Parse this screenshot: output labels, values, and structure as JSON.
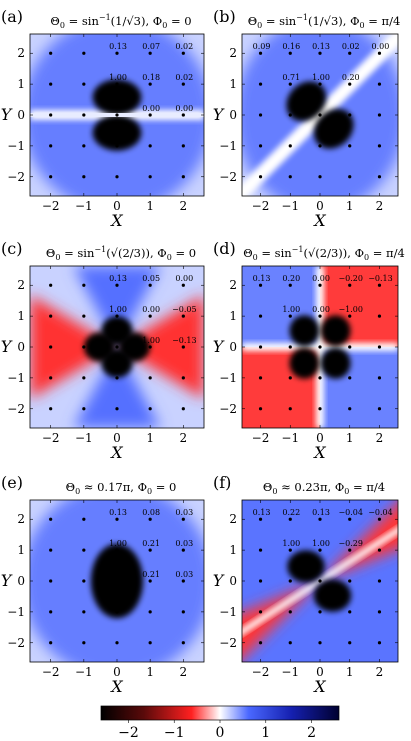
{
  "panels": [
    {
      "letter": "(a)",
      "title_pre": "Θ",
      "title_sub": "0",
      "title_mid": " = sin",
      "title_sup": "−1",
      "title_arg": "(1/√3), ",
      "title_phi": "Φ",
      "title_phi_sub": "0",
      "title_phi_val": " = 0",
      "pattern": "dipole-y",
      "labels": [
        {
          "x": 0,
          "y": 2,
          "text": "0.13"
        },
        {
          "x": 1,
          "y": 2,
          "text": "0.07"
        },
        {
          "x": 2,
          "y": 2,
          "text": "0.02"
        },
        {
          "x": 0,
          "y": 1,
          "text": "1.00"
        },
        {
          "x": 1,
          "y": 1,
          "text": "0.18"
        },
        {
          "x": 2,
          "y": 1,
          "text": "0.02"
        },
        {
          "x": 1,
          "y": 0,
          "text": "0.00"
        },
        {
          "x": 2,
          "y": 0,
          "text": "0.00"
        }
      ]
    },
    {
      "letter": "(b)",
      "title_pre": "Θ",
      "title_sub": "0",
      "title_mid": " = sin",
      "title_sup": "−1",
      "title_arg": "(1/√3), ",
      "title_phi": "Φ",
      "title_phi_sub": "0",
      "title_phi_val": " = π/4",
      "pattern": "dipole-rot",
      "labels": [
        {
          "x": -2,
          "y": 2,
          "text": "0.09"
        },
        {
          "x": -1,
          "y": 2,
          "text": "0.16"
        },
        {
          "x": 0,
          "y": 2,
          "text": "0.13"
        },
        {
          "x": 1,
          "y": 2,
          "text": "0.02"
        },
        {
          "x": 2,
          "y": 2,
          "text": "0.00"
        },
        {
          "x": -1,
          "y": 1,
          "text": "0.71"
        },
        {
          "x": 0,
          "y": 1,
          "text": "1.00"
        },
        {
          "x": 1,
          "y": 1,
          "text": "0.20"
        }
      ]
    },
    {
      "letter": "(c)",
      "title_pre": "Θ",
      "title_sub": "0",
      "title_mid": " = sin",
      "title_sup": "−1",
      "title_arg": "(√(2/3)), ",
      "title_phi": "Φ",
      "title_phi_sub": "0",
      "title_phi_val": " = 0",
      "pattern": "quad-cross",
      "labels": [
        {
          "x": 0,
          "y": 2,
          "text": "0.13"
        },
        {
          "x": 1,
          "y": 2,
          "text": "0.05"
        },
        {
          "x": 2,
          "y": 2,
          "text": "0.00"
        },
        {
          "x": 0,
          "y": 1,
          "text": "1.00"
        },
        {
          "x": 1,
          "y": 1,
          "text": "0.00"
        },
        {
          "x": 2,
          "y": 1,
          "text": "−0.05"
        },
        {
          "x": 1,
          "y": 0,
          "text": "1.00"
        },
        {
          "x": 2,
          "y": 0,
          "text": "−0.13"
        }
      ]
    },
    {
      "letter": "(d)",
      "title_pre": "Θ",
      "title_sub": "0",
      "title_mid": " = sin",
      "title_sup": "−1",
      "title_arg": "(√(2/3)), ",
      "title_phi": "Φ",
      "title_phi_sub": "0",
      "title_phi_val": " = π/4",
      "pattern": "quad-xy",
      "labels": [
        {
          "x": -2,
          "y": 2,
          "text": "0.13"
        },
        {
          "x": -1,
          "y": 2,
          "text": "0.20"
        },
        {
          "x": 0,
          "y": 2,
          "text": "0.00"
        },
        {
          "x": 1,
          "y": 2,
          "text": "−0.20"
        },
        {
          "x": 2,
          "y": 2,
          "text": "−0.13"
        },
        {
          "x": -1,
          "y": 1,
          "text": "1.00"
        },
        {
          "x": 0,
          "y": 1,
          "text": "0.00"
        },
        {
          "x": 1,
          "y": 1,
          "text": "−1.00"
        }
      ]
    },
    {
      "letter": "(e)",
      "title_pre": "Θ",
      "title_sub": "0",
      "title_mid": " ≈ 0.17π, ",
      "title_sup": "",
      "title_arg": "",
      "title_phi": "Φ",
      "title_phi_sub": "0",
      "title_phi_val": " = 0",
      "pattern": "blob",
      "labels": [
        {
          "x": 0,
          "y": 2,
          "text": "0.13"
        },
        {
          "x": 1,
          "y": 2,
          "text": "0.08"
        },
        {
          "x": 2,
          "y": 2,
          "text": "0.03"
        },
        {
          "x": 0,
          "y": 1,
          "text": "1.00"
        },
        {
          "x": 1,
          "y": 1,
          "text": "0.21"
        },
        {
          "x": 2,
          "y": 1,
          "text": "0.03"
        },
        {
          "x": 1,
          "y": 0,
          "text": "0.21"
        },
        {
          "x": 2,
          "y": 0,
          "text": "0.03"
        }
      ]
    },
    {
      "letter": "(f)",
      "title_pre": "Θ",
      "title_sub": "0",
      "title_mid": " ≈ 0.23π, ",
      "title_sup": "",
      "title_arg": "",
      "title_phi": "Φ",
      "title_phi_sub": "0",
      "title_phi_val": " = π/4",
      "pattern": "mixed",
      "labels": [
        {
          "x": -2,
          "y": 2,
          "text": "0.13"
        },
        {
          "x": -1,
          "y": 2,
          "text": "0.22"
        },
        {
          "x": 0,
          "y": 2,
          "text": "0.13"
        },
        {
          "x": 1,
          "y": 2,
          "text": "−0.04"
        },
        {
          "x": 2,
          "y": 2,
          "text": "−0.04"
        },
        {
          "x": -1,
          "y": 1,
          "text": "1.00"
        },
        {
          "x": 0,
          "y": 1,
          "text": "1.00"
        },
        {
          "x": 1,
          "y": 1,
          "text": "−0.29"
        }
      ]
    }
  ],
  "axis": {
    "x_label": "X",
    "y_label": "Y",
    "ticks": [
      "−2",
      "−1",
      "0",
      "1",
      "2"
    ],
    "tick_values": [
      -2,
      -1,
      0,
      1,
      2
    ]
  },
  "colorbar": {
    "tick_labels": [
      "−2",
      "−1",
      "0",
      "1",
      "2"
    ],
    "tick_values": [
      -2,
      -1,
      0,
      1,
      2
    ],
    "colors": {
      "neg_far": "#000000",
      "neg_mid": "#8b0f0f",
      "neg_near": "#ff2a2a",
      "zero": "#ffffff",
      "pos_near": "#4a68ff",
      "pos_mid": "#1a2fc8",
      "pos_far": "#00003a"
    }
  }
}
